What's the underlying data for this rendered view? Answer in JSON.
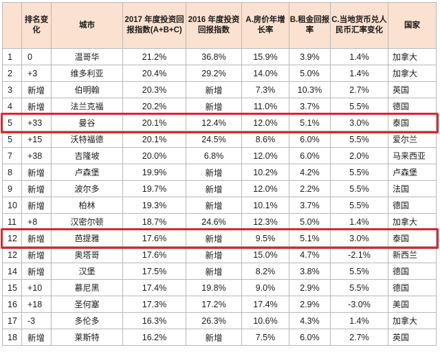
{
  "table": {
    "headers": [
      "",
      "排名变化",
      "城市",
      "2017 年度投资回报指数(A+B+C)",
      "2016 年度投资回报指数",
      "A.房价年增长率",
      "B.租金回报率",
      "C.当地货币兑人民币汇率变化",
      "国家"
    ],
    "rows": [
      [
        "1",
        "0",
        "温哥华",
        "21.2%",
        "36.8%",
        "15.9%",
        "3.9%",
        "1.4%",
        "加拿大"
      ],
      [
        "2",
        "+3",
        "维多利亚",
        "20.4%",
        "29.2%",
        "14.0%",
        "5.0%",
        "1.4%",
        "加拿大"
      ],
      [
        "3",
        "新增",
        "伯明翰",
        "20.3%",
        "新增",
        "7.3%",
        "10.3%",
        "2.7%",
        "英国"
      ],
      [
        "4",
        "新增",
        "法兰克福",
        "20.2%",
        "新增",
        "11.0%",
        "3.7%",
        "5.5%",
        "德国"
      ],
      [
        "5",
        "+33",
        "曼谷",
        "20.1%",
        "12.4%",
        "12.0%",
        "5.1%",
        "3.0%",
        "泰国"
      ],
      [
        "5",
        "+15",
        "沃特福德",
        "20.1%",
        "24.5%",
        "8.6%",
        "6.0%",
        "5.5%",
        "爱尔兰"
      ],
      [
        "7",
        "+38",
        "吉隆坡",
        "20.0%",
        "6.8%",
        "12.0%",
        "6.0%",
        "2.0%",
        "马来西亚"
      ],
      [
        "8",
        "新增",
        "卢森堡",
        "19.9%",
        "新增",
        "10.2%",
        "4.2%",
        "5.5%",
        "卢森堡"
      ],
      [
        "9",
        "新增",
        "波尔多",
        "19.7%",
        "新增",
        "12.0%",
        "2.2%",
        "5.5%",
        "法国"
      ],
      [
        "10",
        "新增",
        "柏林",
        "19.3%",
        "新增",
        "10.1%",
        "3.7%",
        "5.5%",
        "德国"
      ],
      [
        "11",
        "+8",
        "汉密尔顿",
        "18.7%",
        "24.6%",
        "12.3%",
        "5.0%",
        "1.4%",
        "加拿大"
      ],
      [
        "12",
        "新增",
        "芭提雅",
        "17.6%",
        "新增",
        "9.5%",
        "5.1%",
        "3.0%",
        "泰国"
      ],
      [
        "12",
        "新增",
        "奥塔哥",
        "17.6%",
        "新增",
        "15.0%",
        "4.7%",
        "-2.1%",
        "新西兰"
      ],
      [
        "14",
        "新增",
        "汉堡",
        "17.5%",
        "新增",
        "8.2%",
        "3.8%",
        "5.5%",
        "德国"
      ],
      [
        "15",
        "+10",
        "慕尼黑",
        "17.4%",
        "19.8%",
        "9.0%",
        "2.9%",
        "5.5%",
        "德国"
      ],
      [
        "16",
        "+18",
        "圣何塞",
        "17.3%",
        "17.2%",
        "17.4%",
        "2.9%",
        "-3.0%",
        "美国"
      ],
      [
        "17",
        "-3",
        "多伦多",
        "16.3%",
        "26.3%",
        "10.6%",
        "4.3%",
        "1.4%",
        "加拿大"
      ],
      [
        "18",
        "新增",
        "莱斯特",
        "16.2%",
        "新增",
        "7.5%",
        "6.0%",
        "2.7%",
        "英国"
      ]
    ],
    "highlighted_rows": [
      4,
      11
    ],
    "colors": {
      "header_bg": "#fbe1cf",
      "grid": "#b8b8b8",
      "highlight": "#e0222b"
    }
  }
}
